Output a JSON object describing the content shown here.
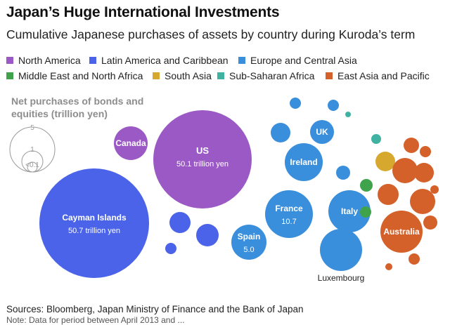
{
  "title": "Japan’s Huge International Investments",
  "subtitle": "Cumulative Japanese purchases of assets by country during Kuroda’s term",
  "legend": [
    {
      "name": "North America",
      "color": "#9b59c5"
    },
    {
      "name": "Latin America and Caribbean",
      "color": "#4a63e8"
    },
    {
      "name": "Europe and Central Asia",
      "color": "#3a8fdd"
    },
    {
      "name": "Middle East and North Africa",
      "color": "#3ea34b"
    },
    {
      "name": "South Asia",
      "color": "#d6a82e"
    },
    {
      "name": "Sub-Saharan Africa",
      "color": "#3fb2a2"
    },
    {
      "name": "East Asia and Pacific",
      "color": "#d5612a"
    }
  ],
  "size_legend": {
    "title_line1": "Net purchases of bonds and",
    "title_line2": "equities (trillion yen)",
    "labels": [
      "5",
      "1",
      "<0.1"
    ]
  },
  "source": "Sources: Bloomberg, Japan Ministry of Finance and the Bank of Japan",
  "note": "Note: Data for period between April 2013 and ...",
  "chart_data": {
    "type": "bubble",
    "title": "Japan’s Huge International Investments",
    "subtitle": "Cumulative Japanese purchases of assets by country during Kuroda’s term",
    "size_unit": "trillion yen",
    "bubbles": [
      {
        "label": "Cayman Islands",
        "value_text": "50.7 trillion yen",
        "value": 50.7,
        "region": "Latin America and Caribbean"
      },
      {
        "label": "US",
        "value_text": "50.1 trillion yen",
        "value": 50.1,
        "region": "North America"
      },
      {
        "label": "Canada",
        "value_text": "",
        "value": 5,
        "region": "North America"
      },
      {
        "label": "France",
        "value_text": "10.7",
        "value": 10.7,
        "region": "Europe and Central Asia"
      },
      {
        "label": "Spain",
        "value_text": "5.0",
        "value": 5.0,
        "region": "Europe and Central Asia"
      },
      {
        "label": "Ireland",
        "value_text": "",
        "value": 5.5,
        "region": "Europe and Central Asia"
      },
      {
        "label": "UK",
        "value_text": "",
        "value": 1.5,
        "region": "Europe and Central Asia"
      },
      {
        "label": "Italy",
        "value_text": "",
        "value": 5.5,
        "region": "Europe and Central Asia"
      },
      {
        "label": "Luxembourg",
        "value_text": "",
        "value": 4.8,
        "region": "Europe and Central Asia"
      },
      {
        "label": "Australia",
        "value_text": "",
        "value": 5.5,
        "region": "East Asia and Pacific"
      },
      {
        "label": "",
        "value_text": "",
        "value": 1.2,
        "region": "Latin America and Caribbean"
      },
      {
        "label": "",
        "value_text": "",
        "value": 0.8,
        "region": "Latin America and Caribbean"
      },
      {
        "label": "",
        "value_text": "",
        "value": 0.3,
        "region": "Latin America and Caribbean"
      },
      {
        "label": "",
        "value_text": "",
        "value": 0.8,
        "region": "Europe and Central Asia"
      },
      {
        "label": "",
        "value_text": "",
        "value": 0.5,
        "region": "Europe and Central Asia"
      },
      {
        "label": "",
        "value_text": "",
        "value": 0.5,
        "region": "Europe and Central Asia"
      },
      {
        "label": "",
        "value_text": "",
        "value": 0.3,
        "region": "Europe and Central Asia"
      },
      {
        "label": "",
        "value_text": "",
        "value": 0.4,
        "region": "Middle East and North Africa"
      },
      {
        "label": "",
        "value_text": "",
        "value": 0.4,
        "region": "Middle East and North Africa"
      },
      {
        "label": "",
        "value_text": "",
        "value": 1.0,
        "region": "South Asia"
      },
      {
        "label": "",
        "value_text": "",
        "value": 0.2,
        "region": "Sub-Saharan Africa"
      },
      {
        "label": "",
        "value_text": "",
        "value": 0.3,
        "region": "Sub-Saharan Africa"
      },
      {
        "label": "",
        "value_text": "",
        "value": 1.6,
        "region": "East Asia and Pacific"
      },
      {
        "label": "",
        "value_text": "",
        "value": 1.5,
        "region": "East Asia and Pacific"
      },
      {
        "label": "",
        "value_text": "",
        "value": 1.4,
        "region": "East Asia and Pacific"
      },
      {
        "label": "",
        "value_text": "",
        "value": 1.3,
        "region": "East Asia and Pacific"
      },
      {
        "label": "",
        "value_text": "",
        "value": 1.1,
        "region": "East Asia and Pacific"
      },
      {
        "label": "",
        "value_text": "",
        "value": 0.9,
        "region": "East Asia and Pacific"
      },
      {
        "label": "",
        "value_text": "",
        "value": 0.6,
        "region": "East Asia and Pacific"
      },
      {
        "label": "",
        "value_text": "",
        "value": 0.5,
        "region": "East Asia and Pacific"
      },
      {
        "label": "",
        "value_text": "",
        "value": 0.4,
        "region": "East Asia and Pacific"
      },
      {
        "label": "",
        "value_text": "",
        "value": 0.3,
        "region": "East Asia and Pacific"
      }
    ]
  }
}
